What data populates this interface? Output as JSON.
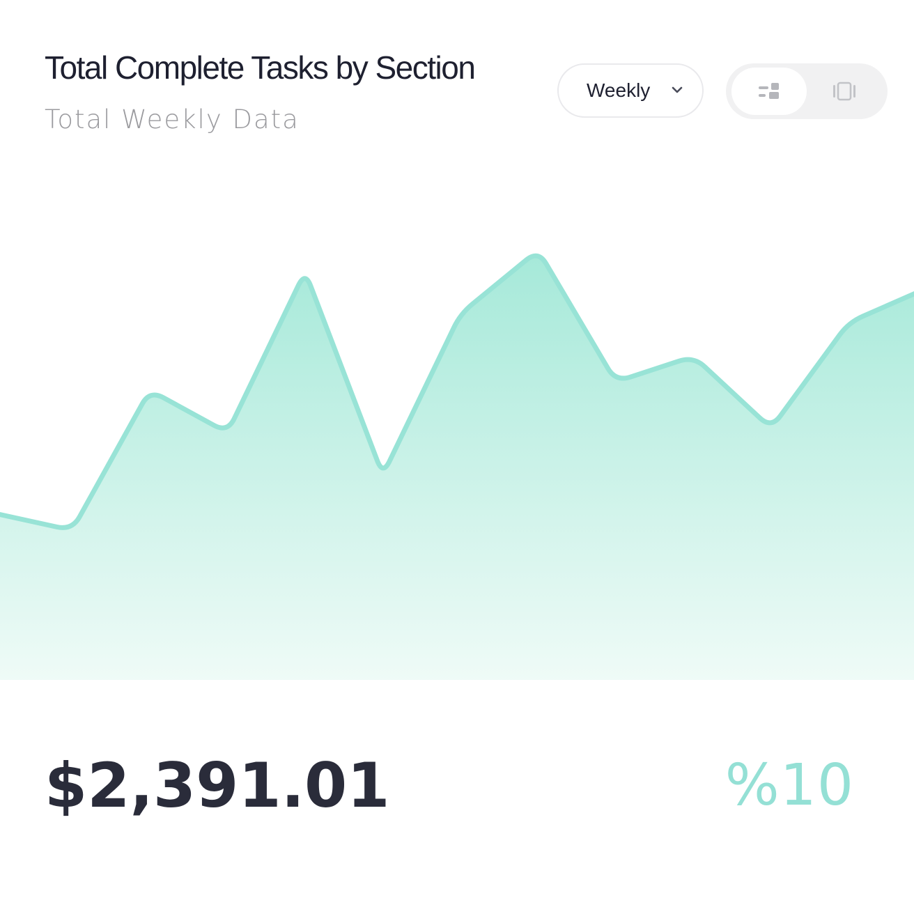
{
  "header": {
    "title": "Total Complete Tasks by Section",
    "subtitle": "Total Weekly Data"
  },
  "controls": {
    "period_select": {
      "selected": "Weekly",
      "icon": "chevron-down-icon"
    },
    "view_toggle": [
      {
        "name": "dashboard-view",
        "icon": "dashboard-layout-icon",
        "active": true
      },
      {
        "name": "card-view",
        "icon": "carousel-card-icon",
        "active": false
      }
    ]
  },
  "colors": {
    "accent": "#94e0d5",
    "line": "#98e3d6",
    "fill_top": "#a6e9d9",
    "fill_bottom": "#effbf7",
    "text_dark": "#1e2030",
    "text_muted": "#9a9a9e"
  },
  "summary": {
    "total": "$2,391.01",
    "change": "%10"
  },
  "chart_data": {
    "type": "area",
    "x": [
      0,
      1,
      2,
      3,
      4,
      5,
      6,
      7,
      8,
      9,
      10,
      11,
      12
    ],
    "values": [
      35,
      31,
      64,
      54,
      92,
      44,
      82,
      97,
      66,
      72,
      55,
      80,
      88
    ],
    "title": "",
    "xlabel": "",
    "ylabel": "",
    "ylim": [
      0,
      110
    ],
    "grid": false,
    "legend": "none"
  }
}
